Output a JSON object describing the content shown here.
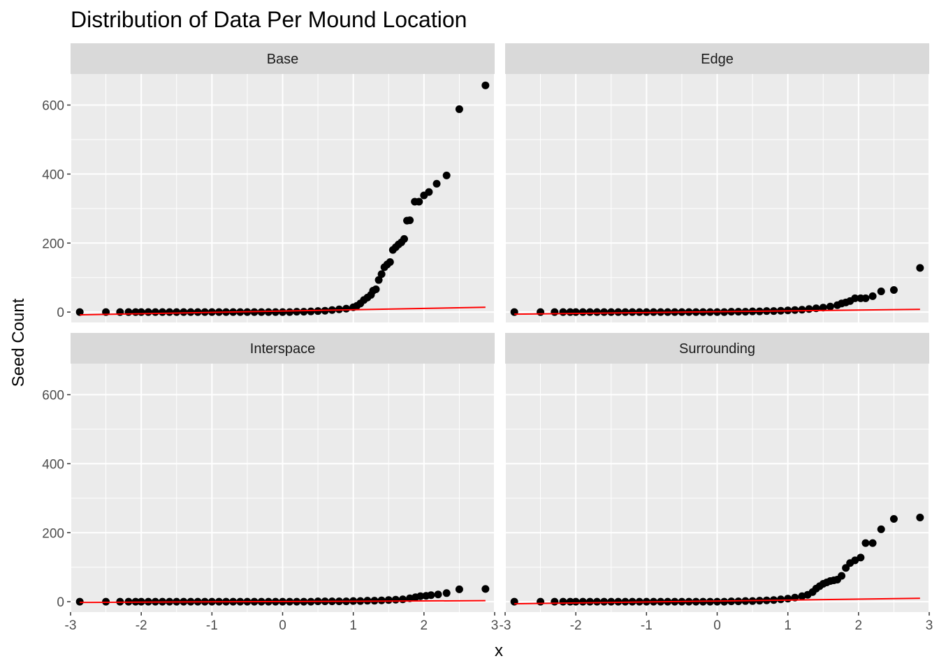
{
  "chart_data": {
    "type": "scatter",
    "subtype": "qq-plot-faceted",
    "title": "Distribution of Data Per Mound Location",
    "xlabel": "x",
    "ylabel": "Seed Count",
    "xlim": [
      -3,
      3
    ],
    "ylim": [
      -30,
      690
    ],
    "x_ticks": [
      -3,
      -2,
      -1,
      0,
      1,
      2,
      3
    ],
    "x_tick_labels": [
      "-3",
      "-2",
      "-1",
      "0",
      "1",
      "2",
      "3"
    ],
    "y_ticks": [
      0,
      200,
      400,
      600
    ],
    "y_tick_labels": [
      "0",
      "200",
      "400",
      "600"
    ],
    "grid": true,
    "point_color": "#000000",
    "reference_line_color": "#ff0000",
    "panel_background": "#ebebeb",
    "strip_background": "#d9d9d9",
    "facets": [
      {
        "name": "Base",
        "reference_line": [
          [
            -2.87,
            -8
          ],
          [
            2.87,
            14
          ]
        ],
        "points": [
          [
            -2.87,
            0
          ],
          [
            -2.5,
            0
          ],
          [
            -2.3,
            0
          ],
          [
            -2.18,
            0
          ],
          [
            -2.08,
            0
          ],
          [
            -2.0,
            0
          ],
          [
            -1.9,
            0
          ],
          [
            -1.8,
            0
          ],
          [
            -1.7,
            0
          ],
          [
            -1.6,
            0
          ],
          [
            -1.5,
            0
          ],
          [
            -1.4,
            0
          ],
          [
            -1.3,
            0
          ],
          [
            -1.2,
            0
          ],
          [
            -1.1,
            0
          ],
          [
            -1.0,
            0
          ],
          [
            -0.9,
            0
          ],
          [
            -0.8,
            0
          ],
          [
            -0.7,
            0
          ],
          [
            -0.6,
            0
          ],
          [
            -0.5,
            0
          ],
          [
            -0.4,
            0
          ],
          [
            -0.3,
            0
          ],
          [
            -0.2,
            0
          ],
          [
            -0.1,
            0
          ],
          [
            0.0,
            0
          ],
          [
            0.1,
            0
          ],
          [
            0.2,
            1
          ],
          [
            0.3,
            1
          ],
          [
            0.4,
            2
          ],
          [
            0.5,
            3
          ],
          [
            0.6,
            4
          ],
          [
            0.7,
            6
          ],
          [
            0.8,
            8
          ],
          [
            0.9,
            10
          ],
          [
            1.0,
            14
          ],
          [
            1.05,
            18
          ],
          [
            1.1,
            25
          ],
          [
            1.15,
            35
          ],
          [
            1.2,
            42
          ],
          [
            1.25,
            50
          ],
          [
            1.28,
            62
          ],
          [
            1.32,
            66
          ],
          [
            1.36,
            93
          ],
          [
            1.4,
            110
          ],
          [
            1.44,
            130
          ],
          [
            1.48,
            138
          ],
          [
            1.52,
            145
          ],
          [
            1.56,
            180
          ],
          [
            1.6,
            188
          ],
          [
            1.64,
            196
          ],
          [
            1.68,
            202
          ],
          [
            1.72,
            212
          ],
          [
            1.76,
            265
          ],
          [
            1.8,
            266
          ],
          [
            1.87,
            320
          ],
          [
            1.93,
            320
          ],
          [
            2.0,
            338
          ],
          [
            2.07,
            348
          ],
          [
            2.18,
            372
          ],
          [
            2.32,
            396
          ],
          [
            2.5,
            588
          ],
          [
            2.87,
            657
          ]
        ]
      },
      {
        "name": "Edge",
        "reference_line": [
          [
            -2.87,
            -6
          ],
          [
            2.87,
            8
          ]
        ],
        "points": [
          [
            -2.87,
            0
          ],
          [
            -2.5,
            0
          ],
          [
            -2.3,
            0
          ],
          [
            -2.18,
            0
          ],
          [
            -2.08,
            0
          ],
          [
            -2.0,
            0
          ],
          [
            -1.9,
            0
          ],
          [
            -1.8,
            0
          ],
          [
            -1.7,
            0
          ],
          [
            -1.6,
            0
          ],
          [
            -1.5,
            0
          ],
          [
            -1.4,
            0
          ],
          [
            -1.3,
            0
          ],
          [
            -1.2,
            0
          ],
          [
            -1.1,
            0
          ],
          [
            -1.0,
            0
          ],
          [
            -0.9,
            0
          ],
          [
            -0.8,
            0
          ],
          [
            -0.7,
            0
          ],
          [
            -0.6,
            0
          ],
          [
            -0.5,
            0
          ],
          [
            -0.4,
            0
          ],
          [
            -0.3,
            0
          ],
          [
            -0.2,
            0
          ],
          [
            -0.1,
            0
          ],
          [
            0.0,
            0
          ],
          [
            0.1,
            0
          ],
          [
            0.2,
            1
          ],
          [
            0.3,
            1
          ],
          [
            0.4,
            1
          ],
          [
            0.5,
            2
          ],
          [
            0.6,
            2
          ],
          [
            0.7,
            3
          ],
          [
            0.8,
            3
          ],
          [
            0.9,
            4
          ],
          [
            1.0,
            5
          ],
          [
            1.1,
            6
          ],
          [
            1.2,
            7
          ],
          [
            1.3,
            9
          ],
          [
            1.4,
            11
          ],
          [
            1.5,
            13
          ],
          [
            1.6,
            16
          ],
          [
            1.7,
            20
          ],
          [
            1.76,
            25
          ],
          [
            1.82,
            28
          ],
          [
            1.88,
            32
          ],
          [
            1.95,
            40
          ],
          [
            2.03,
            40
          ],
          [
            2.1,
            40
          ],
          [
            2.2,
            46
          ],
          [
            2.32,
            60
          ],
          [
            2.5,
            64
          ],
          [
            2.87,
            128
          ]
        ]
      },
      {
        "name": "Interspace",
        "reference_line": [
          [
            -2.87,
            -2
          ],
          [
            2.87,
            3
          ]
        ],
        "points": [
          [
            -2.87,
            0
          ],
          [
            -2.5,
            0
          ],
          [
            -2.3,
            0
          ],
          [
            -2.18,
            0
          ],
          [
            -2.08,
            0
          ],
          [
            -2.0,
            0
          ],
          [
            -1.9,
            0
          ],
          [
            -1.8,
            0
          ],
          [
            -1.7,
            0
          ],
          [
            -1.6,
            0
          ],
          [
            -1.5,
            0
          ],
          [
            -1.4,
            0
          ],
          [
            -1.3,
            0
          ],
          [
            -1.2,
            0
          ],
          [
            -1.1,
            0
          ],
          [
            -1.0,
            0
          ],
          [
            -0.9,
            0
          ],
          [
            -0.8,
            0
          ],
          [
            -0.7,
            0
          ],
          [
            -0.6,
            0
          ],
          [
            -0.5,
            0
          ],
          [
            -0.4,
            0
          ],
          [
            -0.3,
            0
          ],
          [
            -0.2,
            0
          ],
          [
            -0.1,
            0
          ],
          [
            0.0,
            0
          ],
          [
            0.1,
            0
          ],
          [
            0.2,
            0
          ],
          [
            0.3,
            0
          ],
          [
            0.4,
            0
          ],
          [
            0.5,
            1
          ],
          [
            0.6,
            1
          ],
          [
            0.7,
            1
          ],
          [
            0.8,
            1
          ],
          [
            0.9,
            1
          ],
          [
            1.0,
            2
          ],
          [
            1.1,
            2
          ],
          [
            1.2,
            3
          ],
          [
            1.3,
            3
          ],
          [
            1.4,
            4
          ],
          [
            1.5,
            5
          ],
          [
            1.6,
            6
          ],
          [
            1.7,
            7
          ],
          [
            1.8,
            10
          ],
          [
            1.88,
            13
          ],
          [
            1.95,
            16
          ],
          [
            2.03,
            17
          ],
          [
            2.1,
            19
          ],
          [
            2.2,
            21
          ],
          [
            2.32,
            25
          ],
          [
            2.5,
            36
          ],
          [
            2.87,
            37
          ]
        ]
      },
      {
        "name": "Surrounding",
        "reference_line": [
          [
            -2.87,
            -6
          ],
          [
            2.87,
            10
          ]
        ],
        "points": [
          [
            -2.87,
            0
          ],
          [
            -2.5,
            0
          ],
          [
            -2.3,
            0
          ],
          [
            -2.18,
            0
          ],
          [
            -2.08,
            0
          ],
          [
            -2.0,
            0
          ],
          [
            -1.9,
            0
          ],
          [
            -1.8,
            0
          ],
          [
            -1.7,
            0
          ],
          [
            -1.6,
            0
          ],
          [
            -1.5,
            0
          ],
          [
            -1.4,
            0
          ],
          [
            -1.3,
            0
          ],
          [
            -1.2,
            0
          ],
          [
            -1.1,
            0
          ],
          [
            -1.0,
            0
          ],
          [
            -0.9,
            0
          ],
          [
            -0.8,
            0
          ],
          [
            -0.7,
            0
          ],
          [
            -0.6,
            0
          ],
          [
            -0.5,
            0
          ],
          [
            -0.4,
            0
          ],
          [
            -0.3,
            0
          ],
          [
            -0.2,
            0
          ],
          [
            -0.1,
            0
          ],
          [
            0.0,
            0
          ],
          [
            0.1,
            0
          ],
          [
            0.2,
            1
          ],
          [
            0.3,
            1
          ],
          [
            0.4,
            2
          ],
          [
            0.5,
            2
          ],
          [
            0.6,
            3
          ],
          [
            0.7,
            4
          ],
          [
            0.8,
            5
          ],
          [
            0.9,
            7
          ],
          [
            1.0,
            9
          ],
          [
            1.1,
            12
          ],
          [
            1.2,
            16
          ],
          [
            1.28,
            20
          ],
          [
            1.35,
            28
          ],
          [
            1.4,
            38
          ],
          [
            1.45,
            45
          ],
          [
            1.5,
            52
          ],
          [
            1.55,
            56
          ],
          [
            1.6,
            60
          ],
          [
            1.65,
            62
          ],
          [
            1.7,
            64
          ],
          [
            1.76,
            75
          ],
          [
            1.82,
            98
          ],
          [
            1.88,
            112
          ],
          [
            1.95,
            120
          ],
          [
            2.03,
            128
          ],
          [
            2.1,
            170
          ],
          [
            2.2,
            170
          ],
          [
            2.32,
            210
          ],
          [
            2.5,
            240
          ],
          [
            2.87,
            244
          ]
        ]
      }
    ]
  }
}
